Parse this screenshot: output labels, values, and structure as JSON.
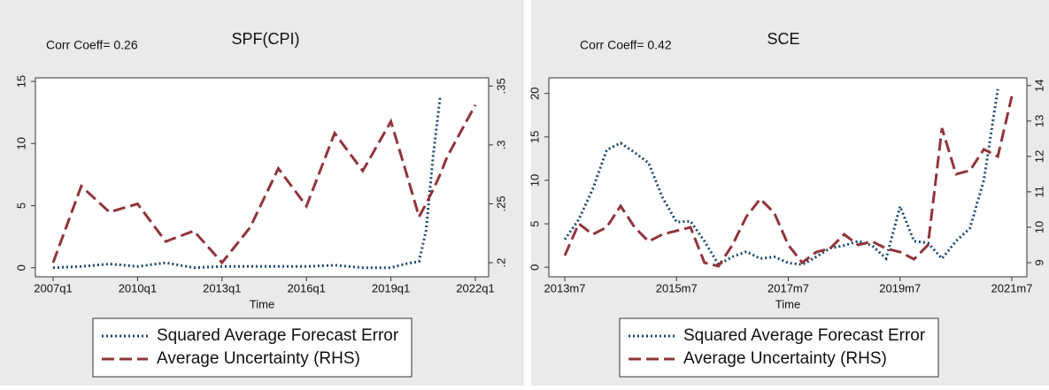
{
  "chart_data": [
    {
      "type": "line",
      "title": "SPF(CPI)",
      "annotation": "Corr Coeff= 0.26",
      "x_label": "Time",
      "x": [
        "2007q1",
        "2008q1",
        "2009q1",
        "2010q1",
        "2011q1",
        "2012q1",
        "2013q1",
        "2014q1",
        "2015q1",
        "2016q1",
        "2017q1",
        "2018q1",
        "2019q1",
        "2019q3",
        "2020q1",
        "2020q2",
        "2020q3",
        "2020q4",
        "2021q1",
        "2021q3",
        "2022q1"
      ],
      "xlim": [
        "2007q1",
        "2022q1"
      ],
      "xticks": [
        "2007q1",
        "2010q1",
        "2013q1",
        "2016q1",
        "2019q1",
        "2022q1"
      ],
      "ylim": [
        -0.73,
        15.29
      ],
      "yticks": [
        0,
        5,
        10,
        15
      ],
      "y2lim": [
        0.188,
        0.357
      ],
      "y2ticks": [
        {
          "value": 0.2,
          "label": ".2"
        },
        {
          "value": 0.25,
          "label": ".25"
        },
        {
          "value": 0.3,
          "label": ".3"
        },
        {
          "value": 0.35,
          "label": ".35"
        }
      ],
      "legend": "bottom",
      "series": [
        {
          "name": "Squared Average Forecast Error",
          "color": "#1a476f",
          "line_style": "dotted",
          "values": [
            0,
            0.1,
            0.3,
            0.1,
            0.4,
            0,
            0.1,
            0.1,
            0.1,
            0.1,
            0.2,
            0,
            0,
            0.3,
            0.5,
            3,
            9,
            13.8,
            null,
            null,
            null
          ]
        },
        {
          "name": "Average Uncertainty (RHS)",
          "color": "#90353b",
          "line_style": "dashed",
          "axis": "y2",
          "values": [
            0.2,
            0.265,
            0.243,
            0.25,
            0.218,
            0.227,
            0.2,
            0.23,
            0.28,
            0.248,
            0.31,
            0.278,
            0.32,
            0.28,
            0.239,
            0.25,
            0.262,
            0.275,
            0.29,
            0.312,
            0.334
          ]
        }
      ]
    },
    {
      "type": "line",
      "title": "SCE",
      "annotation": "Corr Coeff= 0.42",
      "x_label": "Time",
      "x": [
        "2013m7",
        "2013m10",
        "2014m1",
        "2014m4",
        "2014m7",
        "2014m10",
        "2015m1",
        "2015m4",
        "2015m7",
        "2015m10",
        "2016m1",
        "2016m4",
        "2016m7",
        "2016m10",
        "2017m1",
        "2017m4",
        "2017m7",
        "2017m10",
        "2018m1",
        "2018m4",
        "2018m7",
        "2018m10",
        "2019m1",
        "2019m4",
        "2019m7",
        "2019m10",
        "2020m1",
        "2020m4",
        "2020m7",
        "2020m10",
        "2021m1",
        "2021m4",
        "2021m7"
      ],
      "xlim": [
        "2013m7",
        "2021m7"
      ],
      "xticks": [
        "2013m7",
        "2015m7",
        "2017m7",
        "2019m7",
        "2021m7"
      ],
      "ylim": [
        -1.1,
        21.8
      ],
      "yticks": [
        0,
        5,
        10,
        15,
        20
      ],
      "y2lim": [
        8.6,
        14.22
      ],
      "y2ticks": [
        9,
        10,
        11,
        12,
        13,
        14
      ],
      "legend": "bottom",
      "series": [
        {
          "name": "Squared Average Forecast Error",
          "color": "#1a476f",
          "line_style": "dotted",
          "values": [
            3.2,
            5.5,
            9,
            13.5,
            14.3,
            13.2,
            12,
            8,
            5.2,
            5.3,
            3,
            0.3,
            1.2,
            1.8,
            1,
            1.2,
            0.5,
            0.3,
            1.2,
            2.2,
            2.5,
            3,
            2.5,
            1,
            7,
            3,
            2.8,
            1,
            3,
            4.5,
            10,
            20.5,
            null
          ]
        },
        {
          "name": "Average Uncertainty (RHS)",
          "color": "#90353b",
          "line_style": "dashed",
          "axis": "y2",
          "values": [
            9.2,
            10.1,
            9.8,
            10,
            10.6,
            10,
            9.6,
            9.8,
            9.9,
            10,
            9,
            8.9,
            9.5,
            10.3,
            10.8,
            10.4,
            9.5,
            9,
            9.3,
            9.4,
            9.8,
            9.5,
            9.6,
            9.4,
            9.3,
            9.1,
            9.5,
            12.8,
            11.5,
            11.6,
            12.2,
            12,
            13.7
          ]
        }
      ]
    }
  ]
}
